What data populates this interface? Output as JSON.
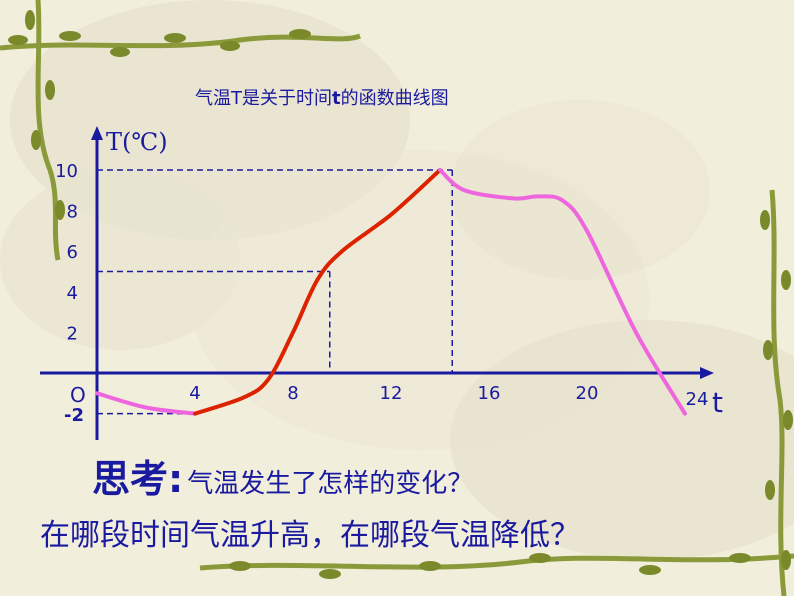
{
  "title": {
    "part1": "气温T是关于时间",
    "var": "t",
    "part2": "的函数曲线图"
  },
  "question": {
    "head": "思考:",
    "line1": "气温发生了怎样的变化？",
    "line2": "在哪段时间气温升高，在哪段气温降低？"
  },
  "chart_data": {
    "type": "line",
    "title": "气温T是关于时间t的函数曲线图",
    "xlabel": "t",
    "ylabel": "T(℃)",
    "origin_label": "O",
    "xlim": [
      0,
      25
    ],
    "ylim": [
      -2,
      10
    ],
    "x_ticks": [
      4,
      8,
      12,
      16,
      20,
      24
    ],
    "y_ticks": [
      -2,
      2,
      4,
      6,
      8,
      10
    ],
    "series": [
      {
        "segment": "decreasing",
        "color": "#ee66dd",
        "x": [
          0,
          2,
          4
        ],
        "y": [
          -1,
          -1.7,
          -2
        ]
      },
      {
        "segment": "increasing",
        "color": "#dd2200",
        "x": [
          4,
          6,
          7,
          8,
          9,
          10,
          12,
          14
        ],
        "y": [
          -2,
          -1.2,
          -0.3,
          2,
          4.6,
          6,
          7.8,
          10
        ]
      },
      {
        "segment": "decreasing",
        "color": "#ee66dd",
        "x": [
          14,
          15,
          17,
          18,
          19,
          20,
          22,
          24
        ],
        "y": [
          10,
          9,
          8.6,
          8.7,
          8.5,
          7,
          2,
          -2
        ]
      }
    ],
    "guides": [
      {
        "x": 4,
        "y": -2
      },
      {
        "x": 9.5,
        "y": 5
      },
      {
        "x": 14.5,
        "y": 10
      }
    ],
    "colors": {
      "axis": "#1a1aa0",
      "guide": "#1a1aa0",
      "text": "#1a1aa0",
      "background": "#f2eedc"
    }
  }
}
